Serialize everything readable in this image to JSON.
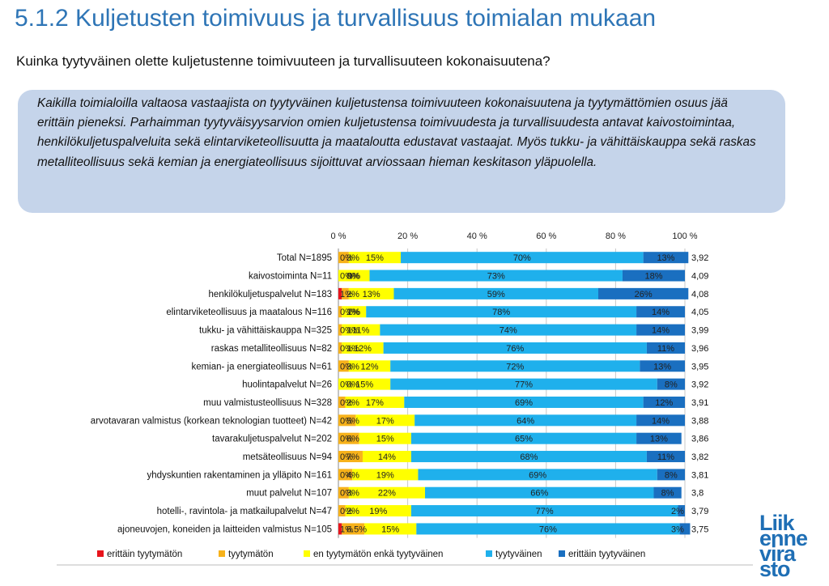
{
  "slide": {
    "title": "5.1.2 Kuljetusten toimivuus ja turvallisuus toimialan mukaan",
    "question": "Kuinka tyytyväinen olette kuljetustenne toimivuuteen ja turvallisuuteen kokonaisuutena?",
    "summary": "Kaikilla toimialoilla valtaosa vastaajista on tyytyväinen kuljetustensa toimivuuteen kokonaisuutena ja tyytymättömien osuus jää erittäin pieneksi. Parhaimman tyytyväisyysarvion omien kuljetustensa toimivuudesta ja turvallisuudesta antavat kaivostoimintaa, henkilökuljetuspalveluita sekä elintarviketeollisuutta ja maataloutta edustavat vastaajat. Myös tukku- ja vähittäiskauppa sekä raskas metalliteollisuus sekä kemian ja energiateollisuus sijoittuvat arviossaan hieman keskitason yläpuolella."
  },
  "logo": {
    "lines": [
      "Liik",
      "enne",
      "vira",
      "sto"
    ],
    "color": "#1f6fb5"
  },
  "chart_data": {
    "type": "bar",
    "orientation": "horizontal",
    "stacked": "percent",
    "xlim": [
      0,
      100
    ],
    "xticks": [
      "0 %",
      "20 %",
      "40 %",
      "60 %",
      "80 %",
      "100 %"
    ],
    "xtick_values": [
      0,
      20,
      40,
      60,
      80,
      100
    ],
    "grid": true,
    "legend_position": "bottom",
    "categories": [
      "Total N=1895",
      "kaivostoiminta N=11",
      "henkilökuljetuspalvelut N=183",
      "elintarviketeollisuus ja maatalous N=116",
      "tukku- ja vähittäiskauppa N=325",
      "raskas metalliteollisuus N=82",
      "kemian- ja energiateollisuus N=61",
      "huolintapalvelut N=26",
      "muu valmistusteollisuus N=328",
      "arvotavaran valmistus (korkean teknologian tuotteet) N=42",
      "tavarakuljetuspalvelut N=202",
      "metsäteollisuus N=94",
      "yhdyskuntien rakentaminen ja ylläpito N=161",
      "muut palvelut N=107",
      "hotelli-, ravintola- ja matkailupalvelut N=47",
      "ajoneuvojen, koneiden ja laitteiden valmistus N=105"
    ],
    "series": [
      {
        "name": "erittäin tyytymätön",
        "color": "#e8141c",
        "values": [
          0,
          0,
          1,
          0,
          0,
          0,
          0,
          0,
          0,
          0,
          0,
          0,
          0,
          0,
          0,
          1
        ],
        "labels": [
          "0%",
          "0%",
          "1%",
          "0%",
          "0%",
          "0%",
          "0%",
          "0%",
          "0%",
          "0%",
          "0%",
          "0%",
          "0%",
          "0%",
          "0%",
          "1%"
        ]
      },
      {
        "name": "tyytymätön",
        "color": "#f7b21a",
        "values": [
          3,
          0,
          2,
          1,
          1,
          1,
          3,
          0,
          2,
          5,
          6,
          7,
          4,
          3,
          2,
          6.5
        ],
        "labels": [
          "3%",
          "0%",
          "2%",
          "1%",
          "1%",
          "1%",
          "3%",
          "0%",
          "2%",
          "5%",
          "6%",
          "7%",
          "4%",
          "3%",
          "2%",
          "6.5%"
        ]
      },
      {
        "name": "en tyytymätön enkä tyytyväinen",
        "color": "#ffff00",
        "values": [
          15,
          9,
          13,
          7,
          11,
          12,
          12,
          15,
          17,
          17,
          15,
          14,
          19,
          22,
          19,
          15
        ],
        "labels": [
          "15%",
          "9%",
          "13%",
          "7%",
          "11%",
          "12%",
          "12%",
          "15%",
          "17%",
          "17%",
          "15%",
          "14%",
          "19%",
          "22%",
          "19%",
          "15%"
        ]
      },
      {
        "name": "tyytyväinen",
        "color": "#1fb0ec",
        "values": [
          70,
          73,
          59,
          78,
          74,
          76,
          72,
          77,
          69,
          64,
          65,
          68,
          69,
          66,
          77,
          76
        ],
        "labels": [
          "70%",
          "73%",
          "59%",
          "78%",
          "74%",
          "76%",
          "72%",
          "77%",
          "69%",
          "64%",
          "65%",
          "68%",
          "69%",
          "66%",
          "77%",
          "76%"
        ]
      },
      {
        "name": "erittäin tyytyväinen",
        "color": "#1a6fc0",
        "values": [
          13,
          18,
          26,
          14,
          14,
          11,
          13,
          8,
          12,
          14,
          13,
          11,
          8,
          8,
          2,
          3
        ],
        "labels": [
          "13%",
          "18%",
          "26%",
          "14%",
          "14%",
          "11%",
          "13%",
          "8%",
          "12%",
          "14%",
          "13%",
          "11%",
          "8%",
          "8%",
          "2%",
          "3%"
        ]
      }
    ],
    "averages": [
      "3,92",
      "4,09",
      "4,08",
      "4,05",
      "3,99",
      "3,96",
      "3,95",
      "3,92",
      "3,91",
      "3,88",
      "3,86",
      "3,82",
      "3,81",
      "3,8",
      "3,79",
      "3,75"
    ]
  }
}
